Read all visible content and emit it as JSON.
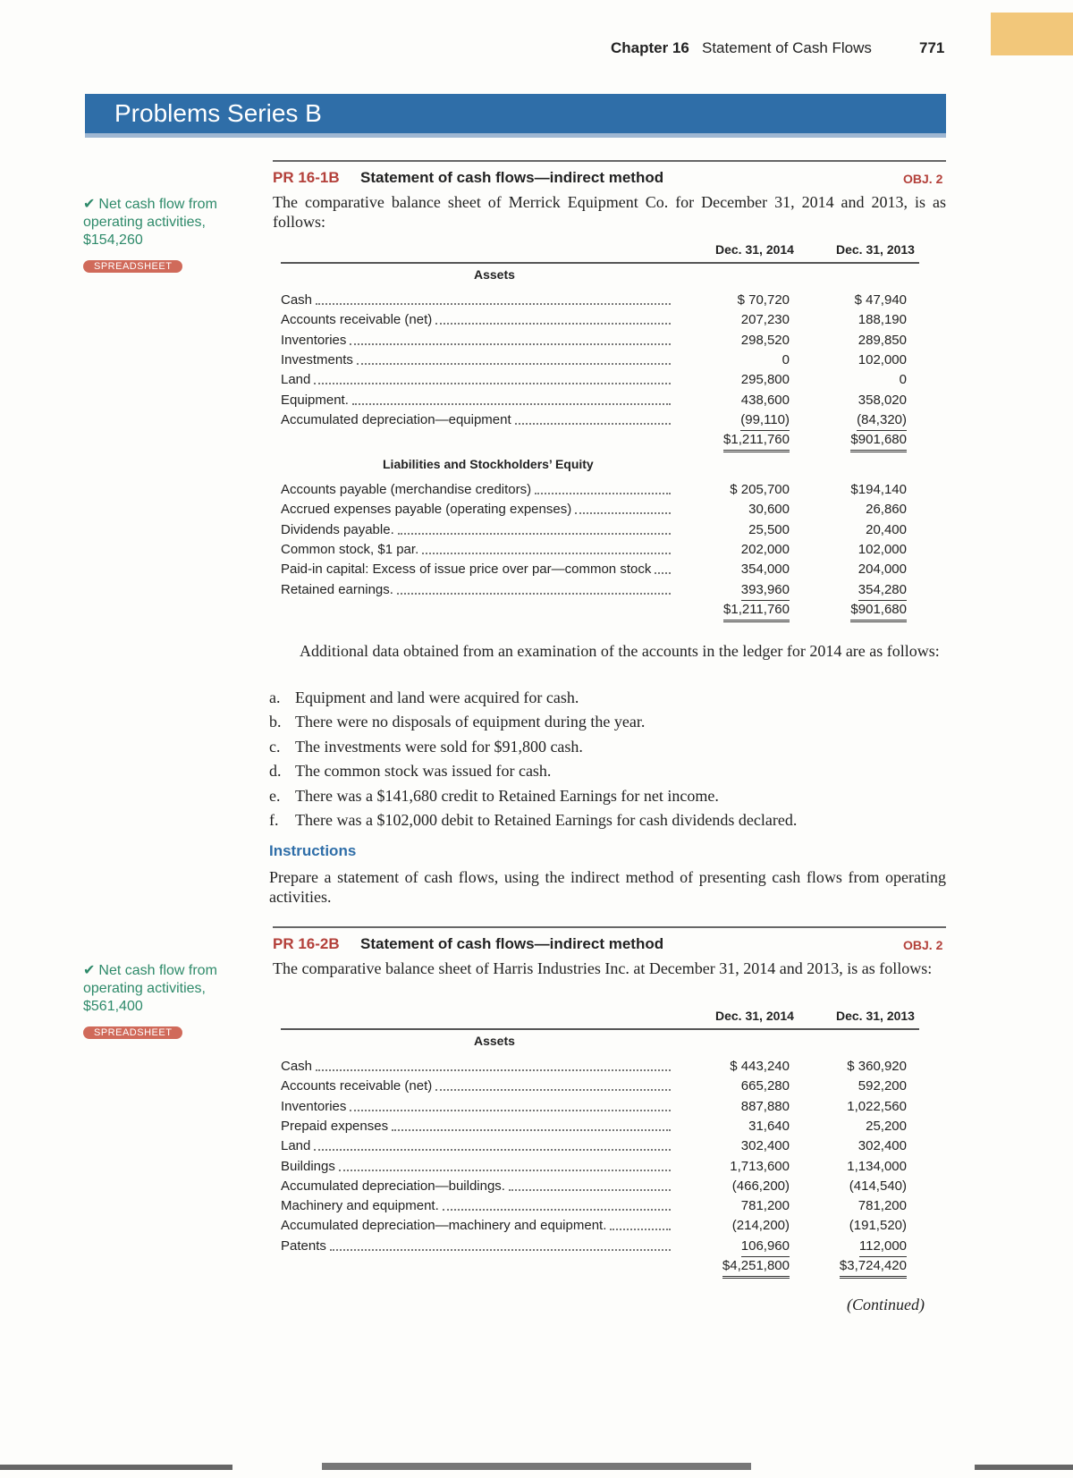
{
  "header": {
    "chapter": "Chapter 16",
    "section": "Statement of Cash Flows",
    "page": "771"
  },
  "banner": "Problems Series B",
  "problems": [
    {
      "id": "PR 16-1B",
      "title": "Statement of cash flows—indirect method",
      "obj": "OBJ. 2",
      "note": "Net cash flow from operating activities, $154,260",
      "badge": "SPREADSHEET",
      "intro": "The comparative balance sheet of Merrick Equipment Co. for December 31, 2014 and 2013, is as follows:",
      "columns": [
        "Dec. 31, 2014",
        "Dec. 31, 2013"
      ],
      "sections": [
        {
          "heading": "Assets",
          "rows": [
            [
              "Cash",
              "$ 70,720",
              "$ 47,940"
            ],
            [
              "Accounts receivable (net)",
              "207,230",
              "188,190"
            ],
            [
              "Inventories",
              "298,520",
              "289,850"
            ],
            [
              "Investments",
              "0",
              "102,000"
            ],
            [
              "Land",
              "295,800",
              "0"
            ],
            [
              "Equipment.",
              "438,600",
              "358,020"
            ],
            [
              "Accumulated depreciation—equipment",
              "(99,110)",
              "(84,320)"
            ]
          ],
          "total": [
            "$1,211,760",
            "$901,680"
          ]
        },
        {
          "heading": "Liabilities and Stockholders’ Equity",
          "rows": [
            [
              "Accounts payable (merchandise creditors)",
              "$ 205,700",
              "$194,140"
            ],
            [
              "Accrued expenses payable (operating expenses)",
              "30,600",
              "26,860"
            ],
            [
              "Dividends payable.",
              "25,500",
              "20,400"
            ],
            [
              "Common stock, $1 par.",
              "202,000",
              "102,000"
            ],
            [
              "Paid-in capital: Excess of issue price over par—common stock",
              "354,000",
              "204,000"
            ],
            [
              "Retained earnings.",
              "393,960",
              "354,280"
            ]
          ],
          "total": [
            "$1,211,760",
            "$901,680"
          ]
        }
      ],
      "additional": "Additional data obtained from an examination of the accounts in the ledger for 2014 are as follows:",
      "items": [
        [
          "a.",
          "Equipment and land were acquired for cash."
        ],
        [
          "b.",
          "There were no disposals of equipment during the year."
        ],
        [
          "c.",
          "The investments were sold for $91,800 cash."
        ],
        [
          "d.",
          "The common stock was issued for cash."
        ],
        [
          "e.",
          "There was a $141,680 credit to Retained Earnings for net income."
        ],
        [
          "f.",
          "There was a $102,000 debit to Retained Earnings for cash dividends declared."
        ]
      ],
      "instructions_heading": "Instructions",
      "instructions": "Prepare a statement of cash flows, using the indirect method of presenting cash flows from operating activities."
    },
    {
      "id": "PR 16-2B",
      "title": "Statement of cash flows—indirect method",
      "obj": "OBJ. 2",
      "note": "Net cash flow from operating activities, $561,400",
      "badge": "SPREADSHEET",
      "intro": "The comparative balance sheet of Harris Industries Inc. at December 31, 2014 and 2013, is as follows:",
      "columns": [
        "Dec. 31, 2014",
        "Dec. 31, 2013"
      ],
      "sections": [
        {
          "heading": "Assets",
          "rows": [
            [
              "Cash",
              "$ 443,240",
              "$ 360,920"
            ],
            [
              "Accounts receivable (net)",
              "665,280",
              "592,200"
            ],
            [
              "Inventories",
              "887,880",
              "1,022,560"
            ],
            [
              "Prepaid expenses",
              "31,640",
              "25,200"
            ],
            [
              "Land",
              "302,400",
              "302,400"
            ],
            [
              "Buildings",
              "1,713,600",
              "1,134,000"
            ],
            [
              "Accumulated depreciation—buildings.",
              "(466,200)",
              "(414,540)"
            ],
            [
              "Machinery and equipment.",
              "781,200",
              "781,200"
            ],
            [
              "Accumulated depreciation—machinery and equipment.",
              "(214,200)",
              "(191,520)"
            ],
            [
              "Patents",
              "106,960",
              "112,000"
            ]
          ],
          "total": [
            "$4,251,800",
            "$3,724,420"
          ]
        }
      ],
      "continued": "(Continued)"
    }
  ]
}
